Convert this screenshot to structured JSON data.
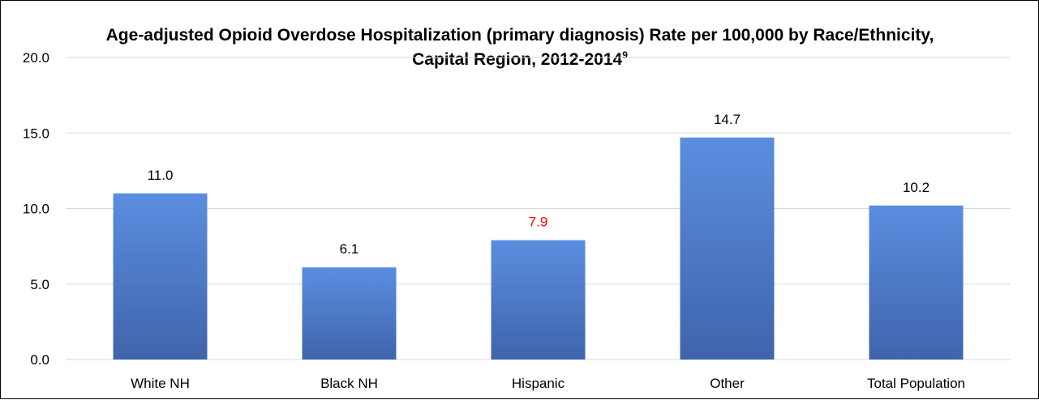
{
  "chart_data": {
    "type": "bar",
    "title": "Age-adjusted Opioid Overdose Hospitalization (primary diagnosis) Rate per 100,000 by Race/Ethnicity, Capital Region, 2012-2014",
    "title_superscript": "9",
    "categories": [
      "White NH",
      "Black NH",
      "Hispanic",
      "Other",
      "Total Population"
    ],
    "values": [
      11.0,
      6.1,
      7.9,
      14.7,
      10.2
    ],
    "value_labels": [
      "11.0",
      "6.1",
      "7.9",
      "14.7",
      "10.2"
    ],
    "label_colors": [
      "#000000",
      "#000000",
      "#ff0000",
      "#000000",
      "#000000"
    ],
    "yticks": [
      "0.0",
      "5.0",
      "10.0",
      "15.0",
      "20.0"
    ],
    "ylim": [
      0,
      20
    ],
    "xlabel": "",
    "ylabel": "",
    "grid": true,
    "legend": "none",
    "bar_color_top": "#5b8ee0",
    "bar_color_bottom": "#3f64ab",
    "grid_color": "#d9d9d9"
  }
}
